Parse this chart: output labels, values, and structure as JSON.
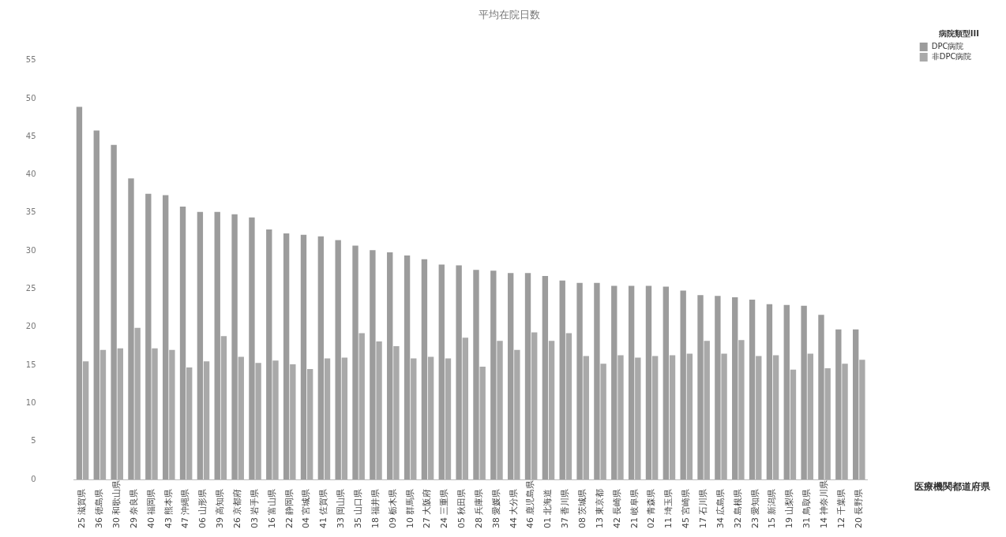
{
  "chart_data": {
    "type": "bar",
    "title": "平均在院日数",
    "xlabel": "医療機関都道府県",
    "legend_title": "病院類型III",
    "legend": "top right",
    "categories": [
      "25 滋賀県",
      "36 徳島県",
      "30 和歌山県",
      "29 奈良県",
      "40 福岡県",
      "43 熊本県",
      "47 沖縄県",
      "06 山形県",
      "39 高知県",
      "26 京都府",
      "03 岩手県",
      "16 富山県",
      "22 静岡県",
      "04 宮城県",
      "41 佐賀県",
      "33 岡山県",
      "35 山口県",
      "18 福井県",
      "09 栃木県",
      "10 群馬県",
      "27 大阪府",
      "24 三重県",
      "05 秋田県",
      "28 兵庫県",
      "38 愛媛県",
      "44 大分県",
      "46 鹿児島県",
      "01 北海道",
      "37 香川県",
      "08 茨城県",
      "13 東京都",
      "42 長崎県",
      "21 岐阜県",
      "02 青森県",
      "11 埼玉県",
      "45 宮崎県",
      "17 石川県",
      "34 広島県",
      "32 島根県",
      "23 愛知県",
      "15 新潟県",
      "19 山梨県",
      "31 鳥取県",
      "14 神奈川県",
      "12 千葉県",
      "20 長野県"
    ],
    "series": [
      {
        "name": "DPC病院",
        "color": "#9c9c9c",
        "values": [
          48.9,
          45.8,
          43.9,
          39.5,
          37.5,
          37.3,
          35.8,
          35.1,
          35.1,
          34.8,
          34.4,
          32.8,
          32.3,
          32.1,
          31.9,
          31.4,
          30.7,
          30.1,
          29.8,
          29.4,
          28.9,
          28.2,
          28.1,
          27.5,
          27.4,
          27.1,
          27.1,
          26.7,
          26.1,
          25.8,
          25.8,
          25.4,
          25.4,
          25.4,
          25.3,
          24.8,
          24.2,
          24.1,
          23.9,
          23.6,
          23.0,
          22.9,
          22.8,
          21.6,
          19.7,
          19.7
        ]
      },
      {
        "name": "非DPC病院",
        "color": "#a9a9a9",
        "values": [
          15.5,
          17.0,
          17.2,
          19.9,
          17.2,
          17.0,
          14.7,
          15.5,
          18.8,
          16.1,
          15.3,
          15.6,
          15.1,
          14.5,
          15.9,
          16.0,
          19.2,
          18.1,
          17.5,
          15.9,
          16.1,
          15.9,
          18.6,
          14.8,
          18.2,
          17.0,
          19.3,
          18.2,
          19.2,
          16.2,
          15.2,
          16.3,
          16.0,
          16.2,
          16.3,
          16.5,
          18.2,
          16.5,
          18.3,
          16.2,
          16.3,
          14.4,
          16.5,
          14.6,
          15.2,
          15.7
        ]
      }
    ],
    "ylim": [
      0,
      55
    ],
    "yticks": [
      0,
      5,
      10,
      15,
      20,
      25,
      30,
      35,
      40,
      45,
      50,
      55
    ]
  }
}
